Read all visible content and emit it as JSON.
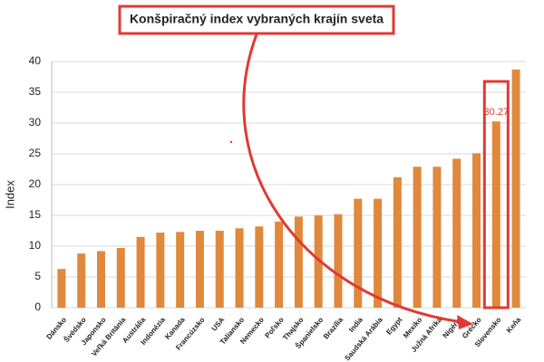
{
  "chart_data": {
    "type": "bar",
    "title": "Konšpiračný index vybraných krajín sveta",
    "y_label": "Index",
    "categories": [
      "Dánsko",
      "Švédsko",
      "Japonsko",
      "Veľká Británia",
      "Austrália",
      "Indonézia",
      "Kanada",
      "Francúzsko",
      "USA",
      "Taliansko",
      "Nemecko",
      "Poľsko",
      "Thajsko",
      "Španielsko",
      "Brazília",
      "India",
      "Saudská Arábia",
      "Egypt",
      "Mexiko",
      "Južná Afrika",
      "Nigéria",
      "Grécko",
      "Slovensko",
      "Keňa"
    ],
    "values": [
      6.3,
      8.8,
      9.2,
      9.7,
      11.5,
      12.2,
      12.3,
      12.5,
      12.5,
      12.9,
      13.2,
      14,
      14.8,
      15,
      15.2,
      17.7,
      17.7,
      21.2,
      22.9,
      22.9,
      24.2,
      25.1,
      30.27,
      38.7
    ],
    "value_labels": [
      null,
      null,
      null,
      null,
      null,
      null,
      null,
      null,
      null,
      null,
      null,
      null,
      null,
      null,
      null,
      null,
      null,
      null,
      null,
      null,
      null,
      null,
      "30.27",
      null
    ],
    "color": "#e0883c",
    "ylim": [
      0,
      40
    ],
    "yticks": [
      0,
      5,
      10,
      15,
      20,
      25,
      30,
      35,
      40
    ],
    "grid": true
  }
}
